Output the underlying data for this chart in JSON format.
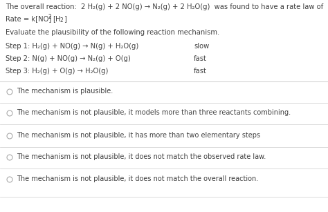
{
  "bg_color": "#ffffff",
  "text_color": "#404040",
  "options": [
    "The mechanism is plausible.",
    "The mechanism is not plausible, it models more than three reactants combining.",
    "The mechanism is not plausible, it has more than two elementary steps",
    "The mechanism is not plausible, it does not match the observed rate law.",
    "The mechanism is not plausible, it does not match the overall reaction."
  ],
  "divider_color": "#cccccc",
  "radio_color": "#aaaaaa",
  "font_size": 7.2,
  "small_font": 5.5
}
